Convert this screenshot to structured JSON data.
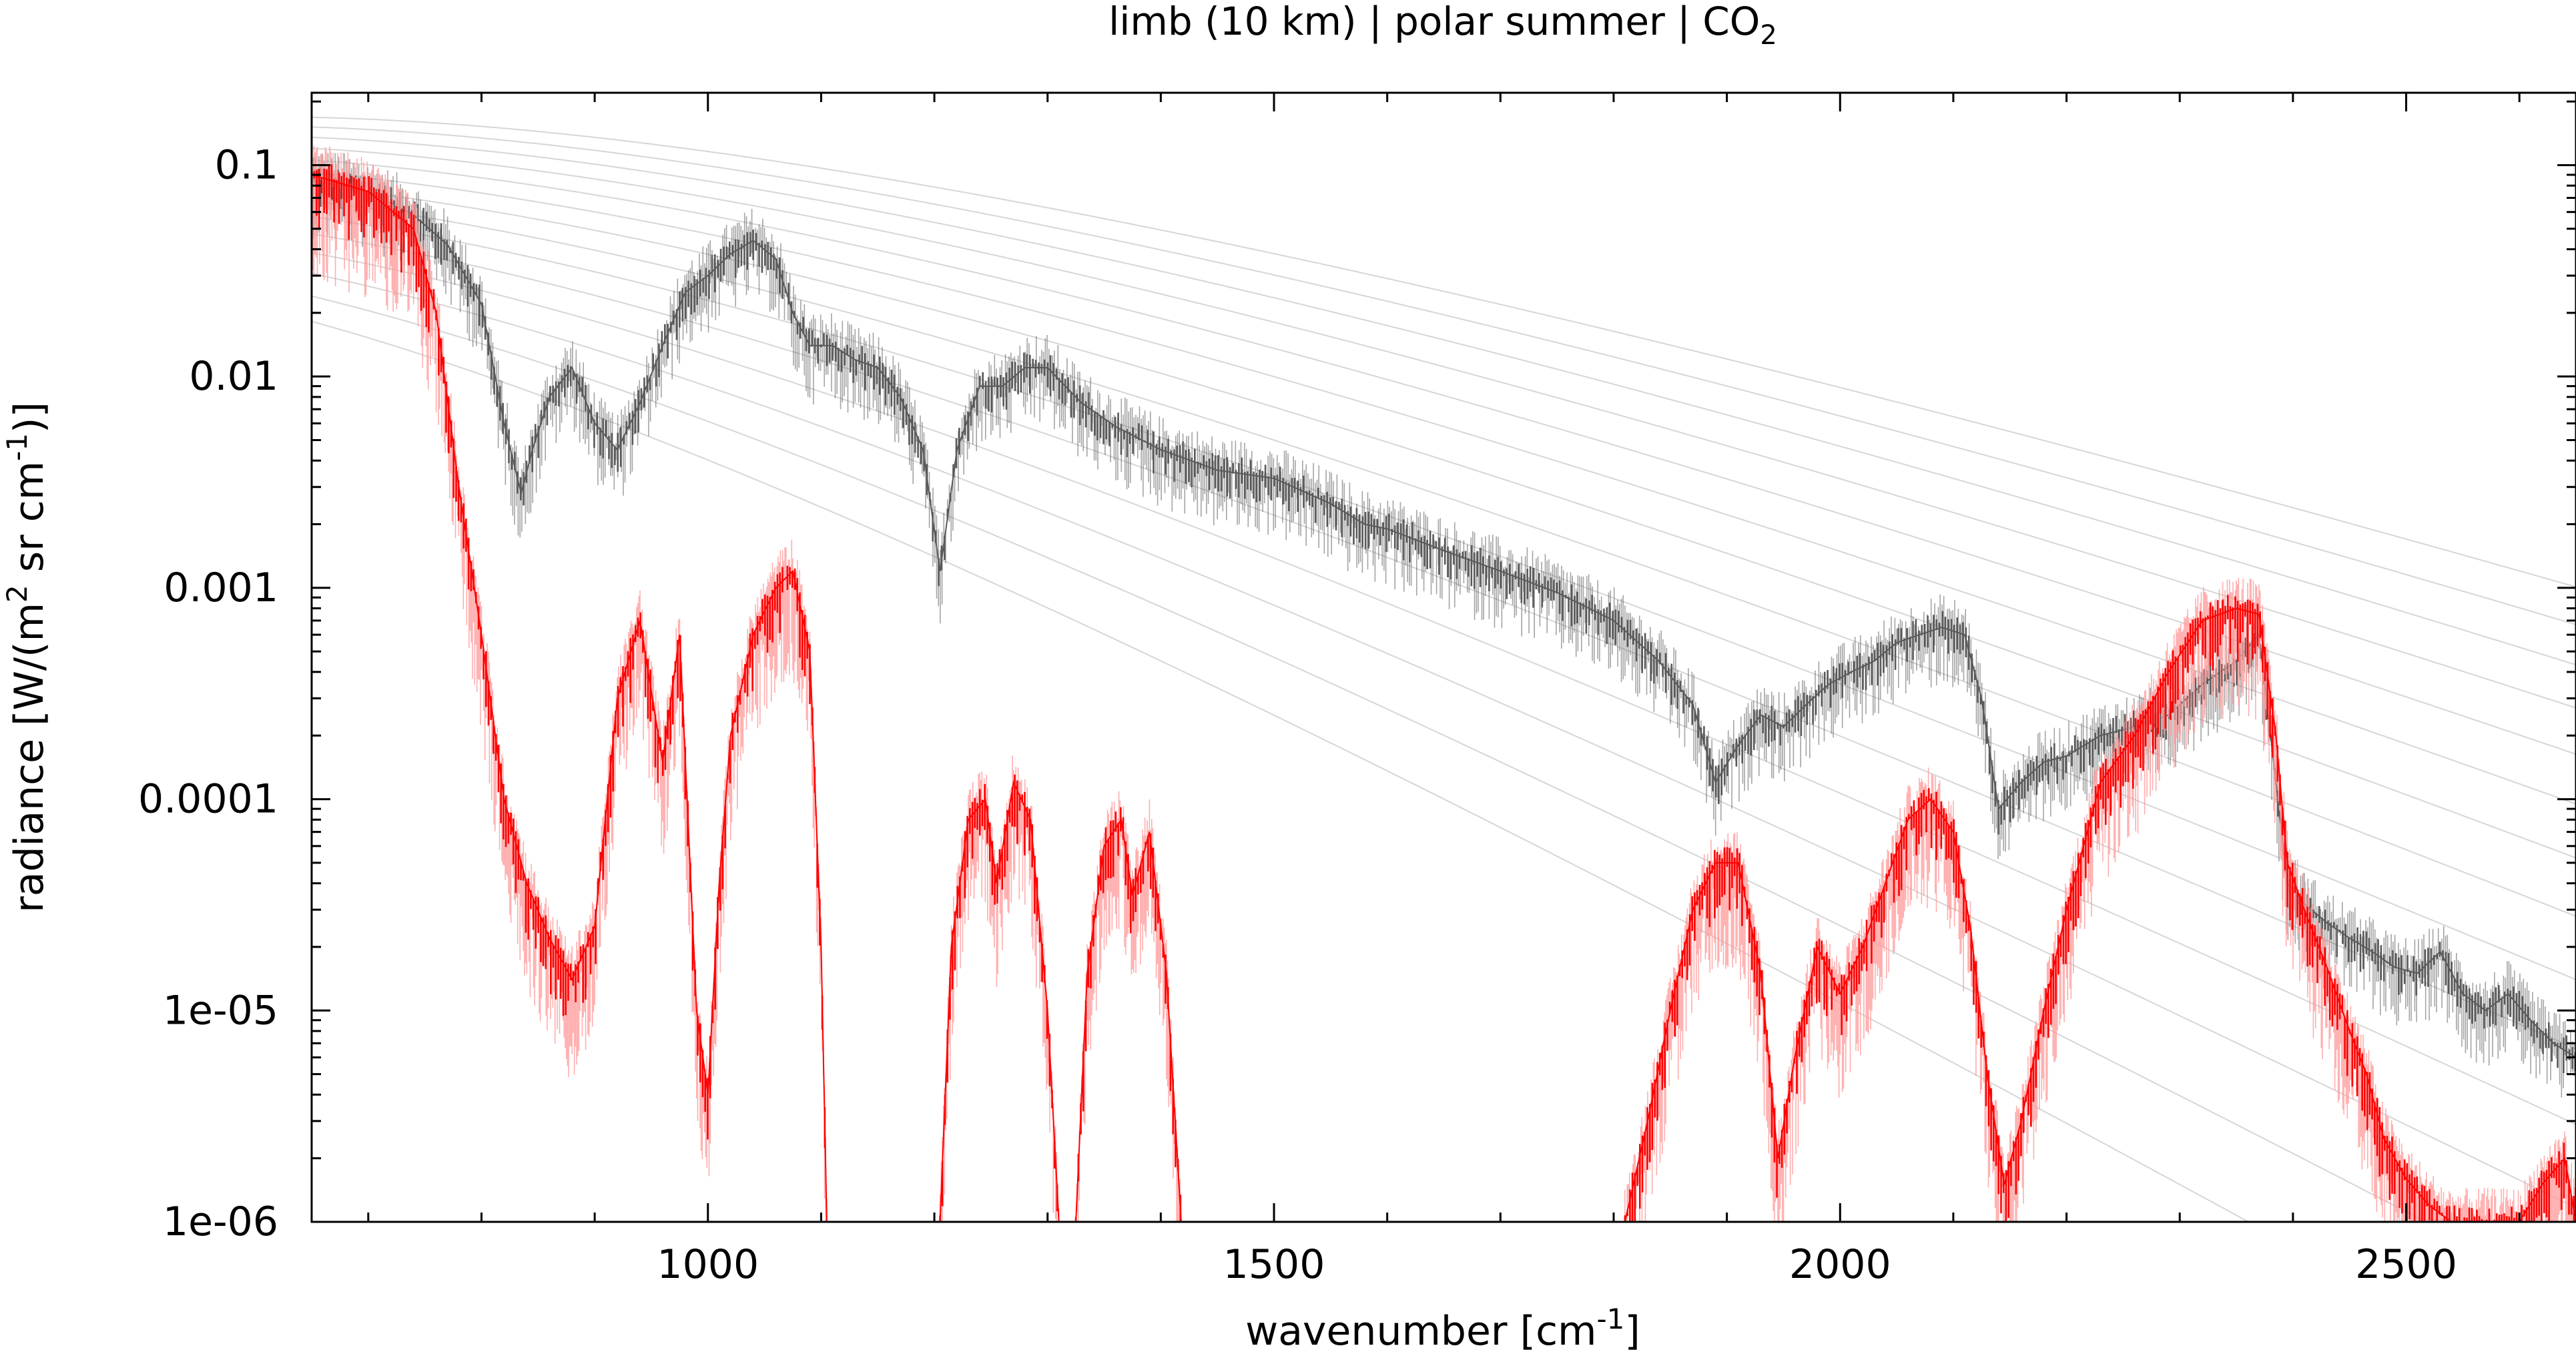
{
  "chart_data": {
    "type": "line",
    "title": "limb (10 km) | polar summer | CO",
    "title_subscript": "2",
    "xlabel": "wavenumber [cm",
    "xlabel_sup": "-1",
    "xlabel_end": "]",
    "ylabel": "radiance [W/(m",
    "ylabel_sup1": "2",
    "ylabel_mid": " sr cm",
    "ylabel_sup2": "-1",
    "ylabel_end": ")]",
    "xlim": [
      650,
      2650
    ],
    "ylim": [
      1e-06,
      0.22
    ],
    "yscale": "log",
    "grid": false,
    "x_ticks": [
      {
        "value": 1000,
        "label": "1000"
      },
      {
        "value": 1500,
        "label": "1500"
      },
      {
        "value": 2000,
        "label": "2000"
      },
      {
        "value": 2500,
        "label": "2500"
      }
    ],
    "x_minor_ticks": [
      700,
      800,
      900,
      1100,
      1200,
      1300,
      1400,
      1600,
      1700,
      1800,
      1900,
      2100,
      2200,
      2300,
      2400,
      2600
    ],
    "y_ticks": [
      {
        "value": 0.1,
        "label": "0.1"
      },
      {
        "value": 0.01,
        "label": "0.01"
      },
      {
        "value": 0.001,
        "label": "0.001"
      },
      {
        "value": 0.0001,
        "label": "0.0001"
      },
      {
        "value": 1e-05,
        "label": "1e-05"
      },
      {
        "value": 1e-06,
        "label": "1e-06"
      }
    ],
    "colors": {
      "total_radiance": "#595959",
      "co2_radiance": "#ff0000",
      "co2_light": "#ff9a9a",
      "planck_curves": "#c8c8c8",
      "axes": "#000000"
    },
    "planck_temperatures_K": [
      180,
      190,
      200,
      210,
      220,
      230,
      240,
      250,
      260,
      270,
      280,
      290,
      300,
      310
    ],
    "series": [
      {
        "key": "total",
        "x": [
          650,
          700,
          740,
          770,
          800,
          820,
          835,
          845,
          860,
          880,
          900,
          920,
          940,
          960,
          980,
          1000,
          1020,
          1040,
          1060,
          1075,
          1090,
          1110,
          1130,
          1150,
          1170,
          1190,
          1205,
          1220,
          1240,
          1260,
          1280,
          1300,
          1330,
          1360,
          1400,
          1450,
          1500,
          1550,
          1580,
          1600,
          1650,
          1700,
          1750,
          1800,
          1840,
          1870,
          1890,
          1910,
          1930,
          1950,
          1970,
          1990,
          2010,
          2030,
          2050,
          2070,
          2090,
          2110,
          2125,
          2140,
          2160,
          2180,
          2200,
          2230,
          2260,
          2290,
          2320,
          2350,
          2370,
          2385,
          2395,
          2410,
          2430,
          2450,
          2470,
          2490,
          2510,
          2530,
          2550,
          2570,
          2590,
          2610,
          2630,
          2650
        ],
        "y": [
          0.085,
          0.075,
          0.058,
          0.042,
          0.022,
          0.006,
          0.0028,
          0.0045,
          0.008,
          0.011,
          0.006,
          0.0045,
          0.0075,
          0.014,
          0.025,
          0.03,
          0.038,
          0.044,
          0.036,
          0.02,
          0.014,
          0.014,
          0.012,
          0.011,
          0.008,
          0.0045,
          0.0012,
          0.0045,
          0.009,
          0.009,
          0.011,
          0.011,
          0.0075,
          0.0058,
          0.0045,
          0.0036,
          0.0033,
          0.0025,
          0.002,
          0.0019,
          0.0015,
          0.0012,
          0.00095,
          0.0007,
          0.00045,
          0.00028,
          0.00012,
          0.00018,
          0.00025,
          0.00022,
          0.00028,
          0.00035,
          0.0004,
          0.00045,
          0.00055,
          0.0006,
          0.00065,
          0.0006,
          0.0003,
          9e-05,
          0.00012,
          0.00015,
          0.00016,
          0.0002,
          0.00022,
          0.00025,
          0.00035,
          0.00045,
          0.0006,
          0.00012,
          4e-05,
          3.2e-05,
          2.6e-05,
          2.2e-05,
          1.9e-05,
          1.6e-05,
          1.5e-05,
          1.9e-05,
          1.2e-05,
          1e-05,
          1.2e-05,
          9e-06,
          7e-06,
          6e-06
        ]
      },
      {
        "key": "co2",
        "x": [
          650,
          700,
          740,
          760,
          780,
          800,
          820,
          840,
          860,
          880,
          900,
          920,
          940,
          960,
          975,
          990,
          1000,
          1010,
          1020,
          1040,
          1060,
          1075,
          1090,
          1100,
          1105
        ],
        "y": [
          0.09,
          0.075,
          0.05,
          0.02,
          0.003,
          0.0006,
          0.0001,
          4e-05,
          2.2e-05,
          1.4e-05,
          2.5e-05,
          0.0003,
          0.0007,
          0.00015,
          0.0006,
          1e-05,
          4e-06,
          4e-05,
          0.0002,
          0.0006,
          0.001,
          0.0012,
          0.0005,
          2e-05,
          1e-06
        ]
      },
      {
        "key": "co2",
        "x": [
          1205,
          1215,
          1230,
          1245,
          1255,
          1270,
          1285,
          1300,
          1310
        ],
        "y": [
          1e-06,
          2e-05,
          8e-05,
          0.0001,
          4e-05,
          0.00012,
          8e-05,
          1e-05,
          1e-06
        ]
      },
      {
        "key": "co2",
        "x": [
          1325,
          1335,
          1350,
          1365,
          1375,
          1390,
          1405,
          1418
        ],
        "y": [
          1e-06,
          1.5e-05,
          6e-05,
          8e-05,
          3.5e-05,
          7e-05,
          1.5e-05,
          1e-06
        ]
      },
      {
        "key": "co2",
        "x": [
          1810,
          1830,
          1850,
          1870,
          1890,
          1910,
          1930,
          1945,
          1960,
          1980,
          2000,
          2020,
          2040,
          2060,
          2080,
          2100,
          2115,
          2130,
          2145,
          2160,
          2180,
          2200,
          2230,
          2260,
          2290,
          2320,
          2350,
          2370,
          2385,
          2395,
          2410,
          2430,
          2450,
          2465,
          2480,
          2500,
          2520,
          2540,
          2560,
          2580,
          2600,
          2620,
          2640,
          2650
        ],
        "y": [
          1e-06,
          3e-06,
          1e-05,
          3e-05,
          5e-05,
          5e-05,
          1.5e-05,
          2e-06,
          6e-06,
          2e-05,
          1.2e-05,
          2e-05,
          4e-05,
          8e-05,
          0.0001,
          7e-05,
          2.5e-05,
          5e-06,
          1.5e-06,
          3e-06,
          1e-05,
          3e-05,
          0.00012,
          0.0002,
          0.0004,
          0.0007,
          0.0008,
          0.00075,
          0.0002,
          5e-05,
          3e-05,
          1.6e-05,
          8e-06,
          5e-06,
          2.5e-06,
          1.6e-06,
          1.2e-06,
          1e-06,
          1e-06,
          1e-06,
          1e-06,
          1.5e-06,
          2e-06,
          1e-06
        ]
      }
    ]
  }
}
